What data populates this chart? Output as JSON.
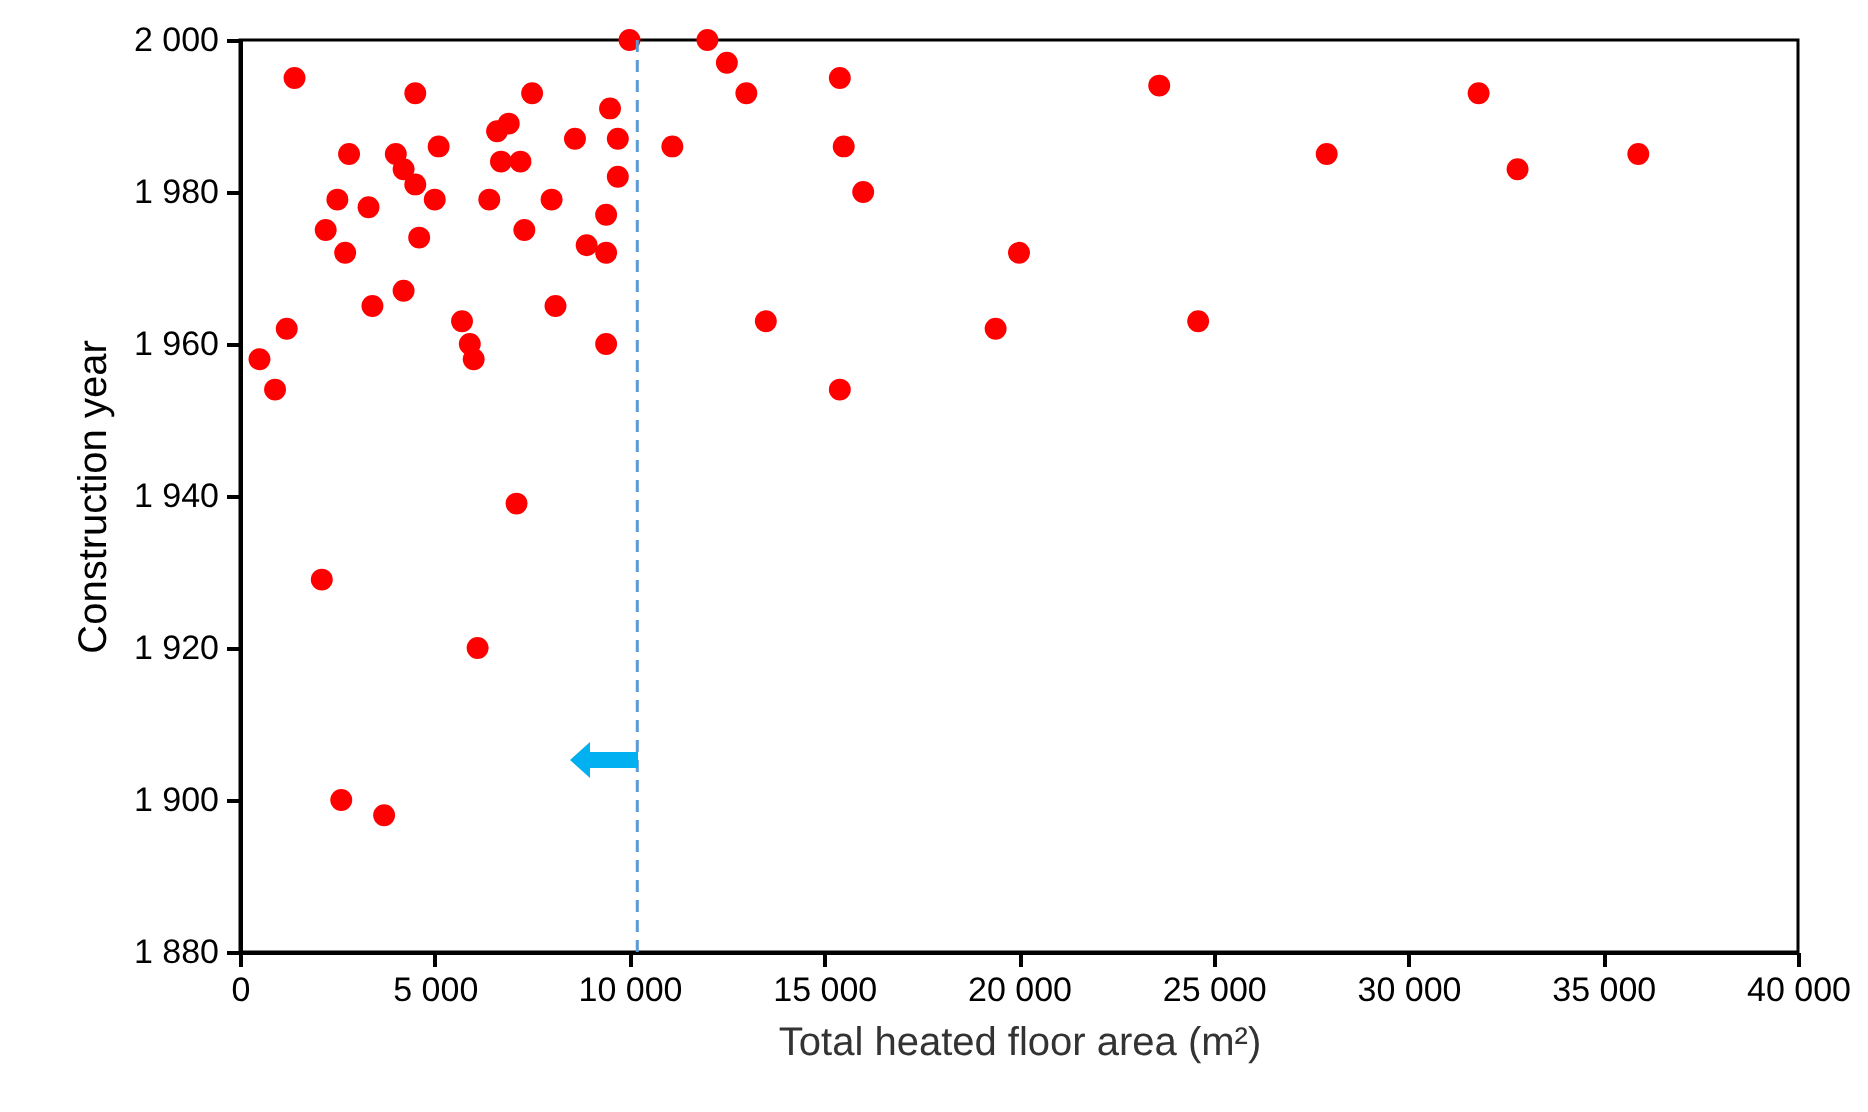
{
  "chart_data": {
    "type": "scatter",
    "xlabel": "Total heated floor area (m²)",
    "ylabel": "Construction year",
    "marker": "circle",
    "xlim": [
      0,
      40000
    ],
    "ylim": [
      1880,
      2000
    ],
    "xticks": [
      0,
      {
        "value": 5000,
        "label": "5 000"
      },
      {
        "value": 10000,
        "label": "10 000"
      },
      {
        "value": 15000,
        "label": "15 000"
      },
      {
        "value": 20000,
        "label": "20 000"
      },
      {
        "value": 25000,
        "label": "25 000"
      },
      {
        "value": 30000,
        "label": "30 000"
      },
      {
        "value": 35000,
        "label": "35 000"
      },
      {
        "value": 40000,
        "label": "40 000"
      }
    ],
    "yticks": [
      {
        "value": 1880,
        "label": "1 880"
      },
      {
        "value": 1900,
        "label": "1 900"
      },
      {
        "value": 1920,
        "label": "1 920"
      },
      {
        "value": 1940,
        "label": "1 940"
      },
      {
        "value": 1960,
        "label": "1 960"
      },
      {
        "value": 1980,
        "label": "1 980"
      },
      {
        "value": 2000,
        "label": "2 000"
      }
    ],
    "ref_lines": [
      {
        "axis": "x",
        "value": 10200,
        "color": "#5b9bd5",
        "line_style": "dashed"
      }
    ],
    "series": [
      {
        "color": "#ff0000",
        "x": [
          500,
          900,
          1200,
          1400,
          2100,
          2200,
          2500,
          2700,
          2600,
          2800,
          3300,
          3400,
          3700,
          4000,
          4200,
          4200,
          4500,
          4500,
          4600,
          5000,
          5100,
          5700,
          5900,
          6000,
          6100,
          6400,
          6600,
          6700,
          6900,
          7100,
          7200,
          7300,
          7500,
          8000,
          8100,
          8600,
          8900,
          9400,
          9400,
          9400,
          9500,
          9700,
          9700,
          10000,
          11100,
          12000,
          12500,
          13000,
          13500,
          15400,
          15400,
          15500,
          16000,
          19400,
          20000,
          23600,
          24600,
          27900,
          31800,
          32800,
          35900
        ],
        "values": [
          1958,
          1954,
          1962,
          1995,
          1929,
          1975,
          1979,
          1972,
          1900,
          1985,
          1978,
          1965,
          1898,
          1985,
          1983,
          1967,
          1993,
          1981,
          1974,
          1979,
          1986,
          1963,
          1960,
          1958,
          1920,
          1979,
          1988,
          1984,
          1989,
          1939,
          1984,
          1975,
          1993,
          1979,
          1965,
          1987,
          1973,
          1972,
          1977,
          1960,
          1991,
          1987,
          1982,
          2000,
          1986,
          2000,
          1997,
          1993,
          1963,
          1995,
          1954,
          1986,
          1980,
          1962,
          1972,
          1994,
          1963,
          1985,
          1993,
          1983,
          1985
        ]
      }
    ]
  }
}
